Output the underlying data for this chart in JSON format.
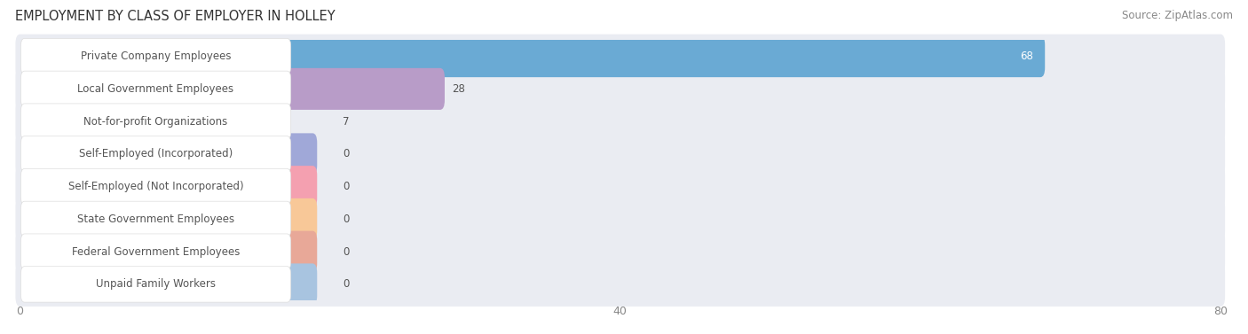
{
  "title": "EMPLOYMENT BY CLASS OF EMPLOYER IN HOLLEY",
  "source": "Source: ZipAtlas.com",
  "categories": [
    "Private Company Employees",
    "Local Government Employees",
    "Not-for-profit Organizations",
    "Self-Employed (Incorporated)",
    "Self-Employed (Not Incorporated)",
    "State Government Employees",
    "Federal Government Employees",
    "Unpaid Family Workers"
  ],
  "values": [
    68,
    28,
    7,
    0,
    0,
    0,
    0,
    0
  ],
  "bar_colors": [
    "#6aaad4",
    "#b89cc8",
    "#6dc4b8",
    "#a0a8d8",
    "#f4a0b0",
    "#f8c898",
    "#e8a898",
    "#a8c4e0"
  ],
  "row_bg_colors": [
    "#eaedf2",
    "#eaedf2",
    "#eaedf2",
    "#eaedf2",
    "#eaedf2",
    "#eaedf2",
    "#eaedf2",
    "#eaedf2"
  ],
  "xlim_max": 80,
  "xticks": [
    0,
    40,
    80
  ],
  "title_fontsize": 10.5,
  "source_fontsize": 8.5,
  "bar_label_fontsize": 8.5,
  "category_fontsize": 8.5
}
